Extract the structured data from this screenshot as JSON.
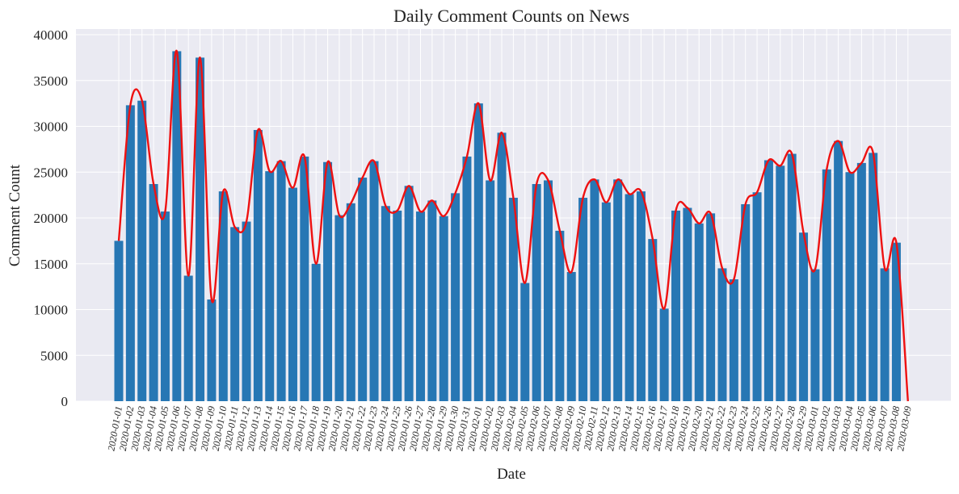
{
  "chart_data": {
    "type": "bar",
    "title": "Daily Comment Counts on News",
    "xlabel": "Date",
    "ylabel": "Comment Count",
    "ylim": [
      0,
      40000
    ],
    "yticks": [
      0,
      5000,
      10000,
      15000,
      20000,
      25000,
      30000,
      35000,
      40000
    ],
    "grid": true,
    "legend": "none",
    "categories": [
      "2020-01-01",
      "2020-01-02",
      "2020-01-03",
      "2020-01-04",
      "2020-01-05",
      "2020-01-06",
      "2020-01-07",
      "2020-01-08",
      "2020-01-09",
      "2020-01-10",
      "2020-01-11",
      "2020-01-12",
      "2020-01-13",
      "2020-01-14",
      "2020-01-15",
      "2020-01-16",
      "2020-01-17",
      "2020-01-18",
      "2020-01-19",
      "2020-01-20",
      "2020-01-21",
      "2020-01-22",
      "2020-01-23",
      "2020-01-24",
      "2020-01-25",
      "2020-01-26",
      "2020-01-27",
      "2020-01-28",
      "2020-01-29",
      "2020-01-30",
      "2020-01-31",
      "2020-02-01",
      "2020-02-02",
      "2020-02-03",
      "2020-02-04",
      "2020-02-05",
      "2020-02-06",
      "2020-02-07",
      "2020-02-08",
      "2020-02-09",
      "2020-02-10",
      "2020-02-11",
      "2020-02-12",
      "2020-02-13",
      "2020-02-14",
      "2020-02-15",
      "2020-02-16",
      "2020-02-17",
      "2020-02-18",
      "2020-02-19",
      "2020-02-20",
      "2020-02-21",
      "2020-02-22",
      "2020-02-23",
      "2020-02-24",
      "2020-02-25",
      "2020-02-26",
      "2020-02-27",
      "2020-02-28",
      "2020-02-29",
      "2020-03-01",
      "2020-03-02",
      "2020-03-03",
      "2020-03-04",
      "2020-03-05",
      "2020-03-06",
      "2020-03-07",
      "2020-03-08",
      "2020-03-09"
    ],
    "values": [
      17500,
      32300,
      32800,
      23700,
      20700,
      38200,
      13700,
      37500,
      11100,
      22900,
      19000,
      19600,
      29600,
      25100,
      26200,
      23300,
      26700,
      15000,
      26100,
      20300,
      21600,
      24400,
      26200,
      21300,
      20800,
      23500,
      20700,
      21900,
      20200,
      22700,
      26700,
      32500,
      24100,
      29300,
      22200,
      12900,
      23700,
      24100,
      18600,
      14100,
      22200,
      24200,
      21700,
      24200,
      22600,
      22900,
      17700,
      10100,
      20800,
      21100,
      19400,
      20500,
      14500,
      13300,
      21500,
      22800,
      26300,
      25700,
      27000,
      18400,
      14400,
      25300,
      28400,
      25000,
      26000,
      27100,
      14500,
      17300,
      0
    ],
    "colors": {
      "bar": "#2777b4",
      "line": "#ee1111",
      "plot_bg": "#eaeaf2",
      "grid": "#ffffff"
    },
    "trend_line": "smooth curve through bar tops"
  }
}
